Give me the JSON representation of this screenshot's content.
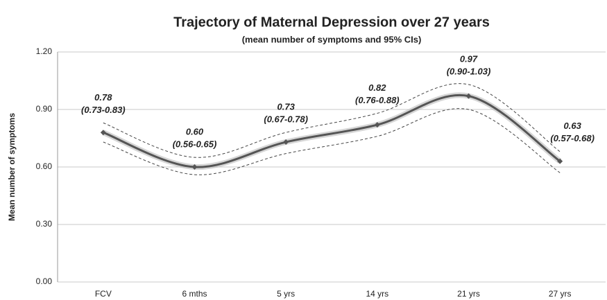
{
  "chart_data": {
    "type": "line",
    "title": "Trajectory of Maternal Depression over 27 years",
    "subtitle": "(mean number of symptoms and 95% CIs)",
    "y_label": "Mean number of symptoms",
    "categories": [
      "FCV",
      "6 mths",
      "5 yrs",
      "14 yrs",
      "21 yrs",
      "27 yrs"
    ],
    "values": [
      0.78,
      0.6,
      0.73,
      0.82,
      0.97,
      0.63
    ],
    "value_labels": [
      "0.78",
      "0.60",
      "0.73",
      "0.82",
      "0.97",
      "0.63"
    ],
    "lower": [
      0.73,
      0.56,
      0.67,
      0.76,
      0.9,
      0.57
    ],
    "upper": [
      0.83,
      0.65,
      0.78,
      0.88,
      1.03,
      0.68
    ],
    "ci_labels": [
      "(0.73-0.83)",
      "(0.56-0.65)",
      "(0.67-0.78)",
      "(0.76-0.88)",
      "(0.90-1.03)",
      "(0.57-0.68)"
    ],
    "color": "#555555",
    "ci_color": "#444444",
    "ylim": [
      0,
      1.2
    ],
    "yticks": [
      {
        "value": 0,
        "label": "0.00"
      },
      {
        "value": 0.3,
        "label": "0.30"
      },
      {
        "value": 0.6,
        "label": "0.60"
      },
      {
        "value": 0.9,
        "label": "0.90"
      },
      {
        "value": 1.2,
        "label": "1.20"
      }
    ],
    "grid": true
  }
}
